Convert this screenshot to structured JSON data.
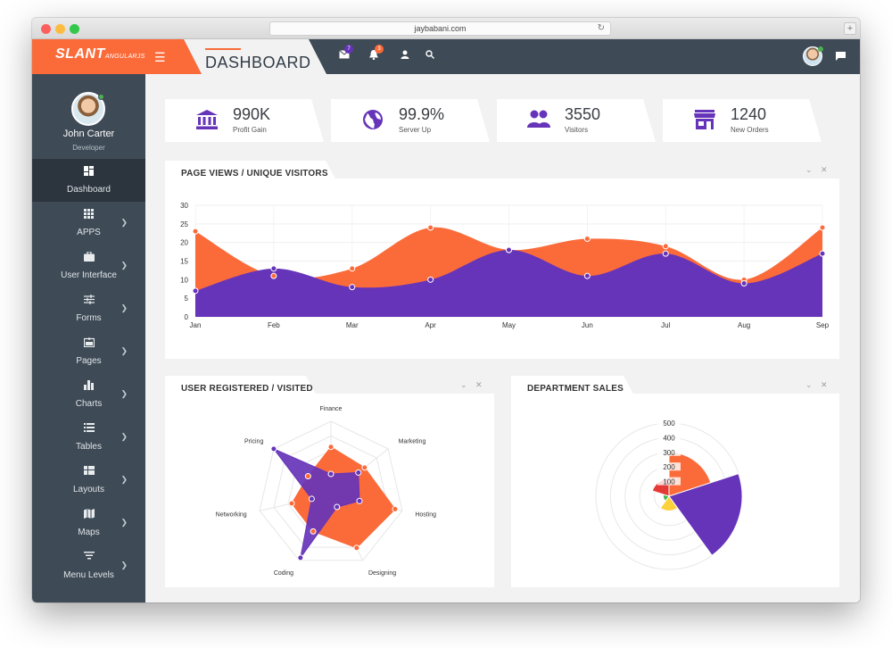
{
  "browser": {
    "url": "jaybabani.com",
    "new_tab": "+"
  },
  "brand": {
    "logo_main": "SLANT",
    "logo_sub": "ANGULARJS"
  },
  "header": {
    "page_title": "DASHBOARD",
    "mail_badge": "7",
    "notification_badge": "3",
    "badge_colors": {
      "mail": "#6634b9",
      "notification": "#fb6b3a"
    }
  },
  "user": {
    "name": "John Carter",
    "role": "Developer"
  },
  "sidebar": {
    "items": [
      {
        "label": "Dashboard",
        "icon": "dashboard-icon"
      },
      {
        "label": "APPS",
        "icon": "apps-grid-icon"
      },
      {
        "label": "User Interface",
        "icon": "briefcase-icon"
      },
      {
        "label": "Forms",
        "icon": "sliders-icon"
      },
      {
        "label": "Pages",
        "icon": "card-icon"
      },
      {
        "label": "Charts",
        "icon": "bar-chart-icon"
      },
      {
        "label": "Tables",
        "icon": "list-icon"
      },
      {
        "label": "Layouts",
        "icon": "layout-icon"
      },
      {
        "label": "Maps",
        "icon": "map-icon"
      },
      {
        "label": "Menu Levels",
        "icon": "filter-icon"
      }
    ]
  },
  "stats": [
    {
      "value": "990K",
      "label": "Profit Gain",
      "icon": "bank-icon"
    },
    {
      "value": "99.9%",
      "label": "Server Up",
      "icon": "globe-icon"
    },
    {
      "value": "3550",
      "label": "Visitors",
      "icon": "users-icon"
    },
    {
      "value": "1240",
      "label": "New Orders",
      "icon": "store-icon"
    }
  ],
  "colors": {
    "orange": "#fb6b3a",
    "purple": "#6634b9",
    "sidebar": "#3e4a55",
    "yellow": "#fbd13c",
    "green": "#3fb54f",
    "red": "#e53935"
  },
  "chart_data": [
    {
      "type": "area",
      "title": "PAGE VIEWS / UNIQUE VISITORS",
      "categories": [
        "Jan",
        "Feb",
        "Mar",
        "Apr",
        "May",
        "Jun",
        "Jul",
        "Aug",
        "Sep"
      ],
      "yticks": [
        0,
        5,
        10,
        15,
        20,
        25,
        30
      ],
      "ylim": [
        0,
        30
      ],
      "series": [
        {
          "color": "#fb6b3a",
          "values": [
            23,
            11,
            13,
            24,
            18,
            21,
            19,
            10,
            24
          ]
        },
        {
          "color": "#6634b9",
          "values": [
            7,
            13,
            8,
            10,
            18,
            11,
            17,
            9,
            17
          ]
        }
      ]
    },
    {
      "type": "radar",
      "title": "USER REGISTERED / VISITED",
      "categories": [
        "Finance",
        "Marketing",
        "Hosting",
        "Designing",
        "Coding",
        "Networking",
        "Pricing"
      ],
      "rmax": 100,
      "series": [
        {
          "color": "#fb6b3a",
          "values": [
            65,
            59,
            90,
            81,
            56,
            55,
            40
          ]
        },
        {
          "color": "#6634b9",
          "values": [
            28,
            48,
            40,
            19,
            96,
            27,
            100
          ]
        }
      ]
    },
    {
      "type": "polar",
      "title": "DEPARTMENT SALES",
      "ticks": [
        100,
        200,
        300,
        400,
        500
      ],
      "rmax": 500,
      "values": [
        300,
        500,
        100,
        40,
        120
      ],
      "slice_colors": [
        "#fb6b3a",
        "#6634b9",
        "#fbd13c",
        "#3fb54f",
        "#e53935"
      ]
    }
  ]
}
